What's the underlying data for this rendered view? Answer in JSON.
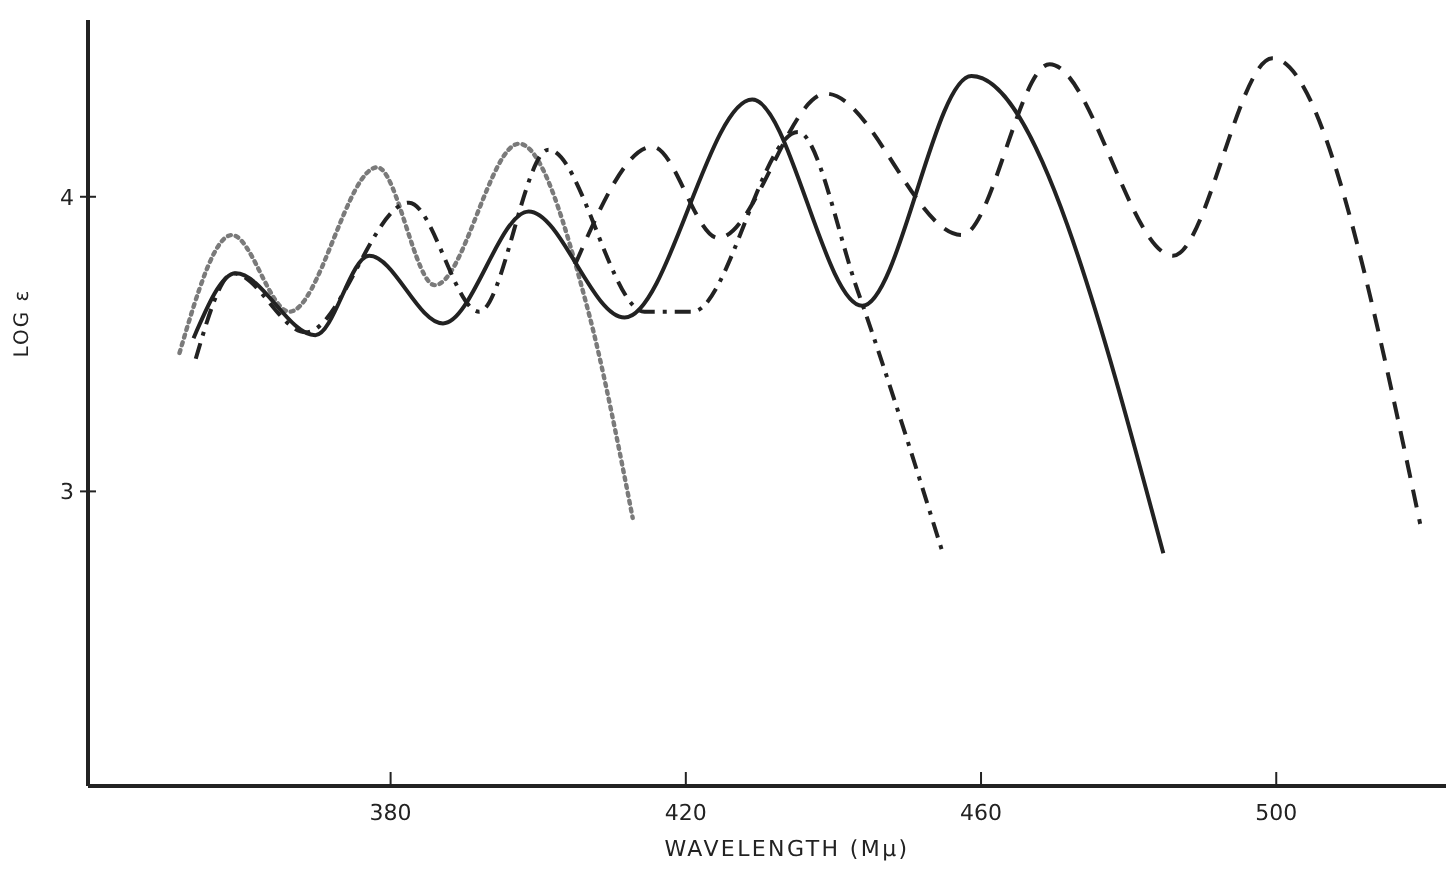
{
  "chart_data": {
    "type": "line",
    "xlabel": "WAVELENGTH (Mμ)",
    "ylabel": "LOG ε",
    "xlim": [
      339,
      523
    ],
    "ylim": [
      2,
      4.6
    ],
    "xticks": [
      380,
      420,
      460,
      500
    ],
    "yticks": [
      3,
      4
    ],
    "grid": false,
    "marker": "none",
    "series": [
      {
        "color": "#7a7a7a",
        "line_style": "dotted",
        "x": [
          351.4,
          358.5,
          366.3,
          378.2,
          386.0,
          397.4,
          406.8,
          412.8
        ],
        "values": [
          3.47,
          3.87,
          3.61,
          4.1,
          3.7,
          4.18,
          3.61,
          2.91
        ]
      },
      {
        "color": "#222222",
        "line_style": "dashdot",
        "x": [
          353.6,
          358.7,
          368.5,
          382.5,
          392.0,
          401.4,
          414.4,
          420.9,
          435.2,
          443.3,
          454.7
        ],
        "values": [
          3.45,
          3.74,
          3.54,
          3.98,
          3.61,
          4.16,
          3.61,
          3.61,
          4.22,
          3.68,
          2.8
        ]
      },
      {
        "color": "#222222",
        "line_style": "solid",
        "x": [
          353.3,
          359.0,
          369.8,
          377.1,
          387.1,
          398.7,
          411.7,
          429.0,
          443.9,
          458.7,
          484.7
        ],
        "values": [
          3.52,
          3.74,
          3.53,
          3.8,
          3.57,
          3.95,
          3.59,
          4.33,
          3.63,
          4.41,
          2.79
        ]
      },
      {
        "color": "#222222",
        "line_style": "dashed",
        "x": [
          405.0,
          415.5,
          424.4,
          439.0,
          457.4,
          469.3,
          486.0,
          499.5,
          519.5
        ],
        "values": [
          3.77,
          4.17,
          3.86,
          4.35,
          3.87,
          4.45,
          3.8,
          4.47,
          2.89
        ]
      }
    ]
  }
}
